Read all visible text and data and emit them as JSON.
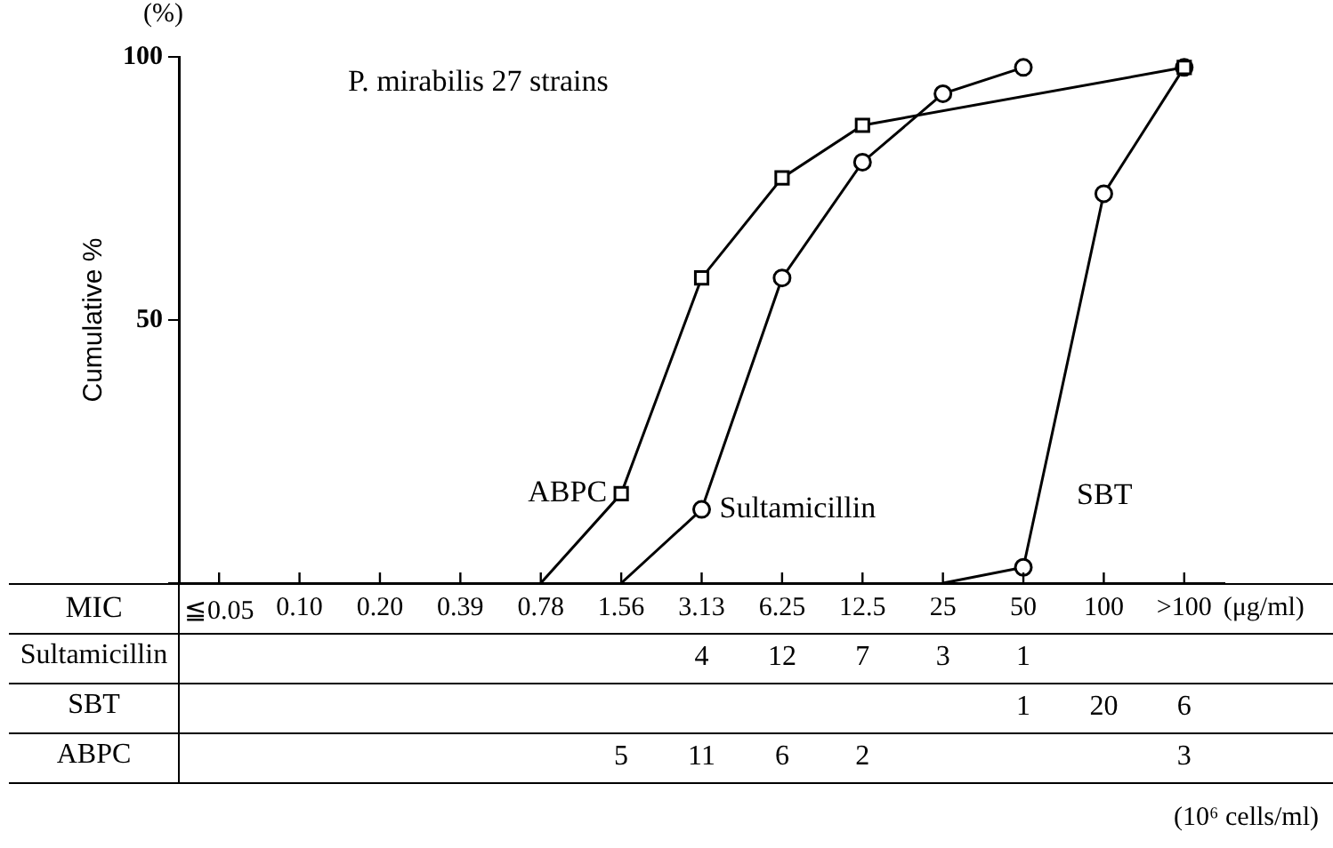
{
  "chart_data": [
    {
      "type": "line",
      "title": "P. mirabilis 27 strains",
      "ylabel": "Cumulative %",
      "categories": [
        null,
        null,
        null,
        null,
        null,
        null,
        null,
        null,
        null,
        null,
        null,
        null,
        null
      ],
      "series": [
        {
          "name": "ABPC",
          "color": "#000000",
          "marker": "square",
          "values": [
            null,
            null,
            null,
            null,
            0,
            17,
            58,
            77,
            87,
            null,
            null,
            null,
            98
          ]
        },
        {
          "name": "Sultamicillin",
          "color": "#000000",
          "marker": "circle",
          "values": [
            null,
            null,
            null,
            null,
            null,
            0,
            14,
            58,
            80,
            93,
            98,
            null,
            null
          ]
        },
        {
          "name": "SBT",
          "color": "#000000",
          "marker": "circle",
          "values": [
            null,
            null,
            null,
            null,
            null,
            null,
            null,
            null,
            null,
            0,
            3,
            74,
            98
          ]
        }
      ],
      "ylim": [
        0,
        100
      ],
      "yticks": [
        {
          "value": 0,
          "label": null
        },
        50,
        100
      ],
      "grid": false,
      "legend": false,
      "tick_labels": "y",
      "annotations": [
        "(%)"
      ]
    },
    {
      "type": "other",
      "xlabel": "MIC",
      "categories": [
        "≦0.05",
        "0.10",
        "0.20",
        "0.39",
        "0.78",
        "1.56",
        "3.13",
        "6.25",
        "12.5",
        "25",
        "50",
        "100",
        ">100"
      ],
      "series": [
        {
          "name": "Sultamicillin",
          "values": [
            null,
            null,
            null,
            null,
            null,
            null,
            4,
            12,
            7,
            3,
            1,
            null,
            null
          ]
        },
        {
          "name": "SBT",
          "values": [
            null,
            null,
            null,
            null,
            null,
            null,
            null,
            null,
            null,
            null,
            1,
            20,
            6
          ]
        },
        {
          "name": "ABPC",
          "values": [
            null,
            null,
            null,
            null,
            null,
            5,
            11,
            6,
            2,
            null,
            null,
            null,
            3
          ]
        }
      ],
      "data_labels": true,
      "annotations": [
        "(μg/ml)",
        "(10⁶ cells/ml)"
      ]
    }
  ]
}
